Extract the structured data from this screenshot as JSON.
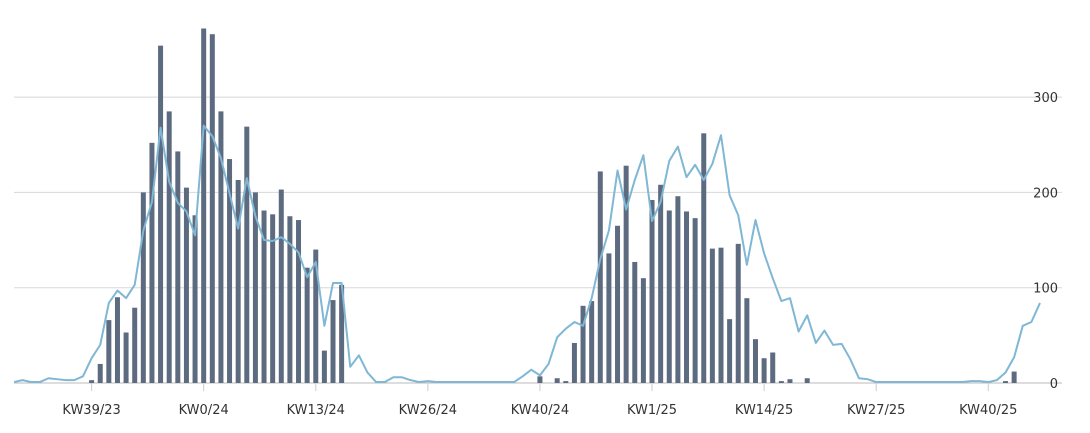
{
  "chart_data": {
    "type": "bar",
    "title": "",
    "xlabel": "",
    "ylabel": "",
    "ylim": [
      0,
      380
    ],
    "grid": true,
    "x_tick_labels": [
      "KW39/23",
      "KW0/24",
      "KW13/24",
      "KW26/24",
      "KW40/24",
      "KW1/25",
      "KW14/25",
      "KW27/25",
      "KW40/25"
    ],
    "y_ticks": [
      0,
      100,
      200,
      300
    ],
    "colors": {
      "bars": "#5d6b80",
      "line": "#7fb7d5",
      "grid": "#d8d8d8"
    },
    "series": [
      {
        "type": "bar",
        "values": [
          0,
          0,
          0,
          0,
          0,
          0,
          0,
          0,
          0,
          3,
          20,
          66,
          90,
          53,
          79,
          200,
          252,
          354,
          285,
          243,
          205,
          176,
          372,
          366,
          285,
          235,
          213,
          269,
          200,
          181,
          177,
          203,
          175,
          171,
          121,
          140,
          34,
          87,
          103,
          0,
          0,
          0,
          0,
          0,
          0,
          0,
          0,
          0,
          0,
          0,
          0,
          0,
          0,
          0,
          0,
          0,
          0,
          0,
          0,
          0,
          0,
          7,
          0,
          5,
          2,
          42,
          81,
          86,
          222,
          136,
          165,
          228,
          127,
          110,
          192,
          208,
          181,
          196,
          180,
          173,
          262,
          141,
          142,
          67,
          146,
          89,
          46,
          26,
          32,
          2,
          4,
          0,
          5,
          0,
          0,
          0,
          0,
          0,
          0,
          0,
          0,
          0,
          0,
          0,
          0,
          0,
          0,
          0,
          0,
          0,
          0,
          0,
          0,
          0,
          0,
          2,
          12
        ]
      },
      {
        "type": "line",
        "values": [
          1,
          3,
          1,
          1,
          5,
          4,
          3,
          3,
          7,
          26,
          40,
          84,
          97,
          89,
          103,
          160,
          190,
          268,
          211,
          189,
          180,
          155,
          270,
          259,
          236,
          199,
          162,
          215,
          175,
          150,
          149,
          153,
          146,
          137,
          111,
          127,
          60,
          105,
          105,
          17,
          29,
          11,
          1,
          1,
          6,
          6,
          3,
          1,
          2,
          1,
          1,
          1,
          1,
          1,
          1,
          1,
          1,
          1,
          1,
          7,
          14,
          8,
          20,
          48,
          57,
          64,
          60,
          89,
          130,
          160,
          223,
          182,
          213,
          239,
          170,
          190,
          233,
          248,
          216,
          229,
          213,
          230,
          260,
          197,
          176,
          124,
          171,
          136,
          110,
          86,
          89,
          54,
          71,
          42,
          55,
          40,
          41,
          25,
          5,
          4,
          1,
          1,
          1,
          1,
          1,
          1,
          1,
          1,
          1,
          1,
          1,
          2,
          2,
          1,
          3,
          11,
          27,
          60,
          64,
          84
        ]
      }
    ]
  }
}
